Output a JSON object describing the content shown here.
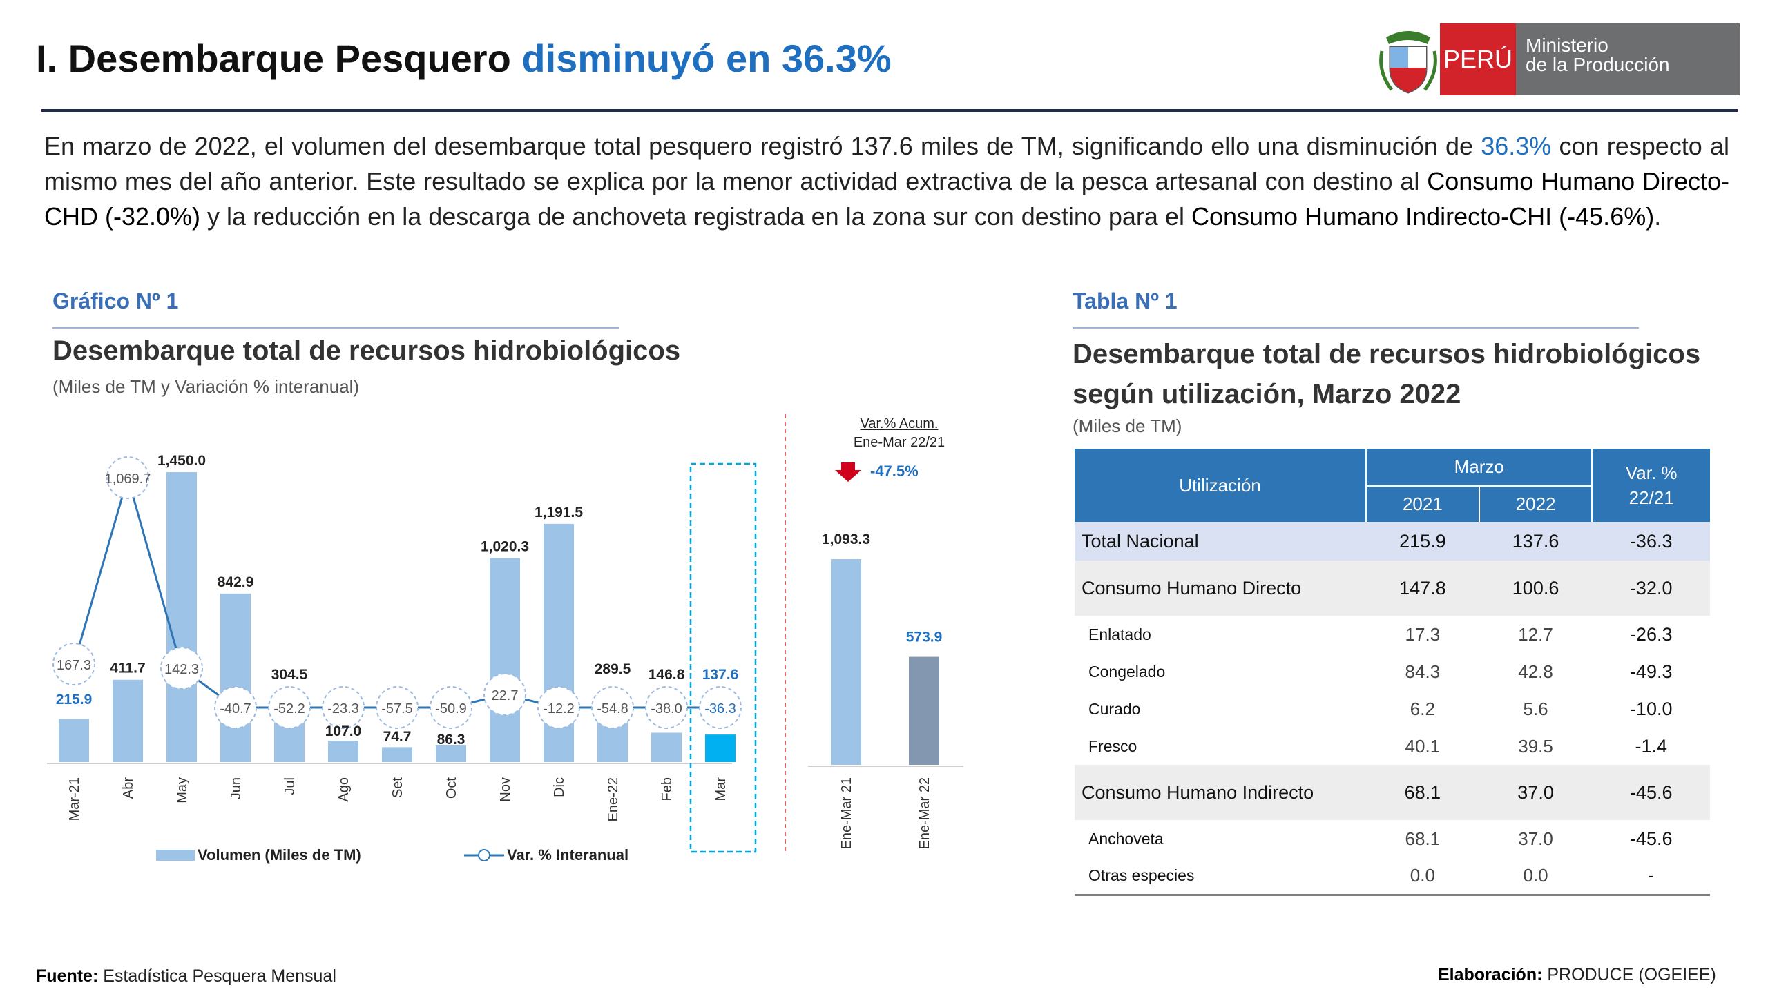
{
  "header": {
    "title_prefix": "I. Desembarque Pesquero",
    "title_highlight": "disminuyó en 36.3%",
    "logo_country": "PERÚ",
    "logo_ministry_line1": "Ministerio",
    "logo_ministry_line2": "de la Producción"
  },
  "paragraph": {
    "p1": "En marzo de 2022, el volumen del desembarque total pesquero registró 137.6 miles de TM, significando ello una disminución de ",
    "p1_highlight": "36.3%",
    "p2": " con respecto al mismo mes del año anterior. Este resultado se explica por la menor actividad extractiva de la pesca artesanal con destino al ",
    "p2_bold": "Consumo Humano Directo-CHD (-32.0%)",
    "p3": " y la reducción en la descarga de anchoveta registrada en la zona sur con destino para el ",
    "p3_bold": "Consumo Humano Indirecto-CHI (-45.6%)",
    "p4": "."
  },
  "graph": {
    "label": "Gráfico Nº 1",
    "title": "Desembarque total de recursos hidrobiológicos",
    "subtitle": "(Miles de TM y Variación % interanual)"
  },
  "chart_data": {
    "type": "bar",
    "categories": [
      "Mar-21",
      "Abr",
      "May",
      "Jun",
      "Jul",
      "Ago",
      "Set",
      "Oct",
      "Nov",
      "Dic",
      "Ene-22",
      "Feb",
      "Mar"
    ],
    "series": [
      {
        "name": "Volumen (Miles de TM)",
        "type": "bar",
        "values": [
          215.9,
          411.7,
          1450.0,
          842.9,
          304.5,
          107.0,
          74.7,
          86.3,
          1020.3,
          1191.5,
          289.5,
          146.8,
          137.6
        ],
        "labels": [
          "215.9",
          "411.7",
          "1,450.0",
          "842.9",
          "304.5",
          "107.0",
          "74.7",
          "86.3",
          "1,020.3",
          "1,191.5",
          "289.5",
          "146.8",
          "137.6"
        ]
      },
      {
        "name": "Var. % Interanual",
        "type": "line",
        "values": [
          167.3,
          1069.7,
          142.3,
          -40.7,
          -52.2,
          -23.3,
          -57.5,
          -50.9,
          22.7,
          -12.2,
          -54.8,
          -38.0,
          -36.3
        ],
        "labels": [
          "167.3",
          "1,069.7",
          "142.3",
          "-40.7",
          "-52.2",
          "-23.3",
          "-57.5",
          "-50.9",
          "22.7",
          "-12.2",
          "-54.8",
          "-38.0",
          "-36.3"
        ]
      }
    ],
    "accum": {
      "categories": [
        "Ene-Mar 21",
        "Ene-Mar 22"
      ],
      "values": [
        1093.3,
        573.9
      ],
      "labels": [
        "1,093.3",
        "573.9"
      ],
      "var_title_1": "Var.% Acum.",
      "var_title_2": "Ene-Mar 22/21",
      "var_value": "-47.5%"
    },
    "legend": {
      "bar": "Volumen (Miles de TM)",
      "line": "Var. % Interanual"
    },
    "colors": {
      "bar": "#9dc3e6",
      "bar_current": "#00b0f0",
      "bar_accum_22": "#8497b0",
      "line": "#2e75b6",
      "highlight_label": "#1f6fc0",
      "down_arrow": "#d0021b"
    }
  },
  "table": {
    "label": "Tabla Nº 1",
    "title_line1": "Desembarque total de recursos hidrobiológicos",
    "title_line2": "según utilización, Marzo 2022",
    "unit": "(Miles de TM)",
    "head": {
      "utilizacion": "Utilización",
      "marzo": "Marzo",
      "y2021": "2021",
      "y2022": "2022",
      "var1": "Var. %",
      "var2": "22/21"
    },
    "rows": [
      {
        "name": "Total Nacional",
        "v2021": "215.9",
        "v2022": "137.6",
        "var": "-36.3",
        "kind": "total"
      },
      {
        "name": "Consumo Humano Directo",
        "v2021": "147.8",
        "v2022": "100.6",
        "var": "-32.0",
        "kind": "group"
      },
      {
        "name": "Enlatado",
        "v2021": "17.3",
        "v2022": "12.7",
        "var": "-26.3",
        "kind": "sub"
      },
      {
        "name": "Congelado",
        "v2021": "84.3",
        "v2022": "42.8",
        "var": "-49.3",
        "kind": "sub"
      },
      {
        "name": "Curado",
        "v2021": "6.2",
        "v2022": "5.6",
        "var": "-10.0",
        "kind": "sub"
      },
      {
        "name": "Fresco",
        "v2021": "40.1",
        "v2022": "39.5",
        "var": "-1.4",
        "kind": "sub"
      },
      {
        "name": "Consumo Humano Indirecto",
        "v2021": "68.1",
        "v2022": "37.0",
        "var": "-45.6",
        "kind": "group"
      },
      {
        "name": "Anchoveta",
        "v2021": "68.1",
        "v2022": "37.0",
        "var": "-45.6",
        "kind": "sub"
      },
      {
        "name": "Otras especies",
        "v2021": "0.0",
        "v2022": "0.0",
        "var": "-",
        "kind": "sub"
      }
    ]
  },
  "footer": {
    "source_label": "Fuente:",
    "source_text": " Estadística Pesquera Mensual",
    "made_label": "Elaboración:",
    "made_text": " PRODUCE (OGEIEE)"
  }
}
